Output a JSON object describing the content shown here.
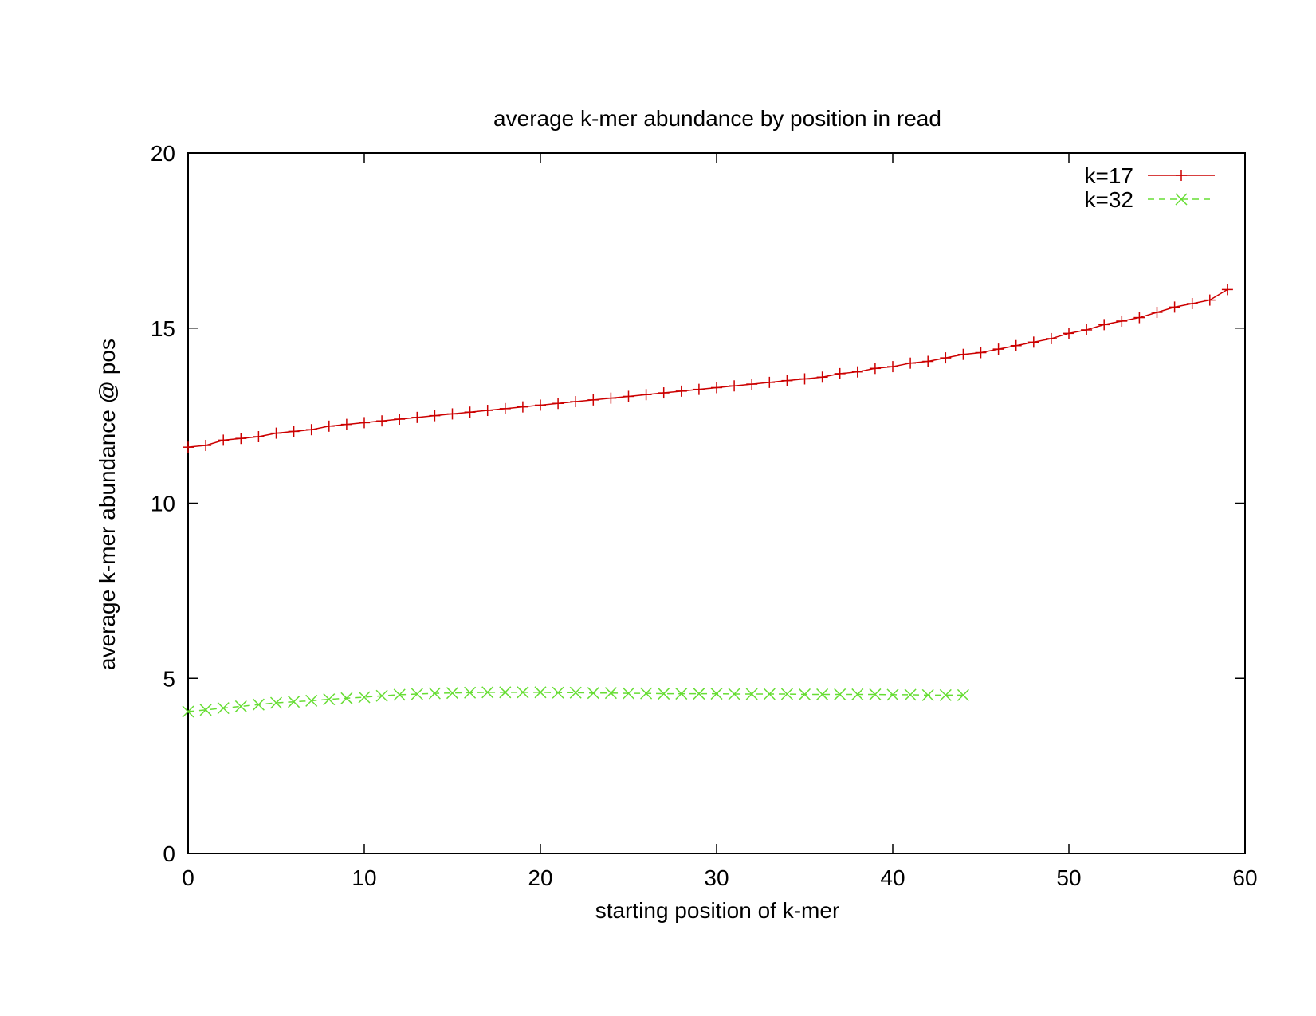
{
  "chart_data": {
    "type": "line",
    "title": "average k-mer abundance by position in read",
    "xlabel": "starting position of k-mer",
    "ylabel": "average k-mer abundance @ pos",
    "xlim": [
      0,
      60
    ],
    "ylim": [
      0,
      20
    ],
    "xticks": [
      "0",
      "10",
      "20",
      "30",
      "40",
      "50",
      "60"
    ],
    "yticks": [
      "0",
      "5",
      "10",
      "15",
      "20"
    ],
    "grid": false,
    "legend_position": "top-right",
    "series": [
      {
        "name": "k=17",
        "color": "#cc0000",
        "marker": "plus",
        "line": "solid",
        "x": [
          0,
          1,
          2,
          3,
          4,
          5,
          6,
          7,
          8,
          9,
          10,
          11,
          12,
          13,
          14,
          15,
          16,
          17,
          18,
          19,
          20,
          21,
          22,
          23,
          24,
          25,
          26,
          27,
          28,
          29,
          30,
          31,
          32,
          33,
          34,
          35,
          36,
          37,
          38,
          39,
          40,
          41,
          42,
          43,
          44,
          45,
          46,
          47,
          48,
          49,
          50,
          51,
          52,
          53,
          54,
          55,
          56,
          57,
          58,
          59
        ],
        "values": [
          11.6,
          11.65,
          11.8,
          11.85,
          11.9,
          12.0,
          12.05,
          12.1,
          12.2,
          12.25,
          12.3,
          12.35,
          12.4,
          12.45,
          12.5,
          12.55,
          12.6,
          12.65,
          12.7,
          12.75,
          12.8,
          12.85,
          12.9,
          12.95,
          13.0,
          13.05,
          13.1,
          13.15,
          13.2,
          13.25,
          13.3,
          13.35,
          13.4,
          13.45,
          13.5,
          13.55,
          13.6,
          13.7,
          13.75,
          13.85,
          13.9,
          14.0,
          14.05,
          14.15,
          14.25,
          14.3,
          14.4,
          14.5,
          14.6,
          14.7,
          14.85,
          14.95,
          15.1,
          15.2,
          15.3,
          15.45,
          15.6,
          15.7,
          15.8,
          16.1
        ]
      },
      {
        "name": "k=32",
        "color": "#66dd33",
        "marker": "cross",
        "line": "dashed",
        "x": [
          0,
          1,
          2,
          3,
          4,
          5,
          6,
          7,
          8,
          9,
          10,
          11,
          12,
          13,
          14,
          15,
          16,
          17,
          18,
          19,
          20,
          21,
          22,
          23,
          24,
          25,
          26,
          27,
          28,
          29,
          30,
          31,
          32,
          33,
          34,
          35,
          36,
          37,
          38,
          39,
          40,
          41,
          42,
          43,
          44
        ],
        "values": [
          4.05,
          4.1,
          4.15,
          4.2,
          4.25,
          4.3,
          4.33,
          4.36,
          4.4,
          4.43,
          4.46,
          4.5,
          4.53,
          4.55,
          4.57,
          4.58,
          4.59,
          4.6,
          4.6,
          4.6,
          4.6,
          4.59,
          4.59,
          4.58,
          4.58,
          4.57,
          4.57,
          4.56,
          4.56,
          4.56,
          4.56,
          4.55,
          4.55,
          4.55,
          4.55,
          4.54,
          4.54,
          4.54,
          4.54,
          4.54,
          4.53,
          4.53,
          4.52,
          4.52,
          4.52
        ]
      }
    ]
  }
}
